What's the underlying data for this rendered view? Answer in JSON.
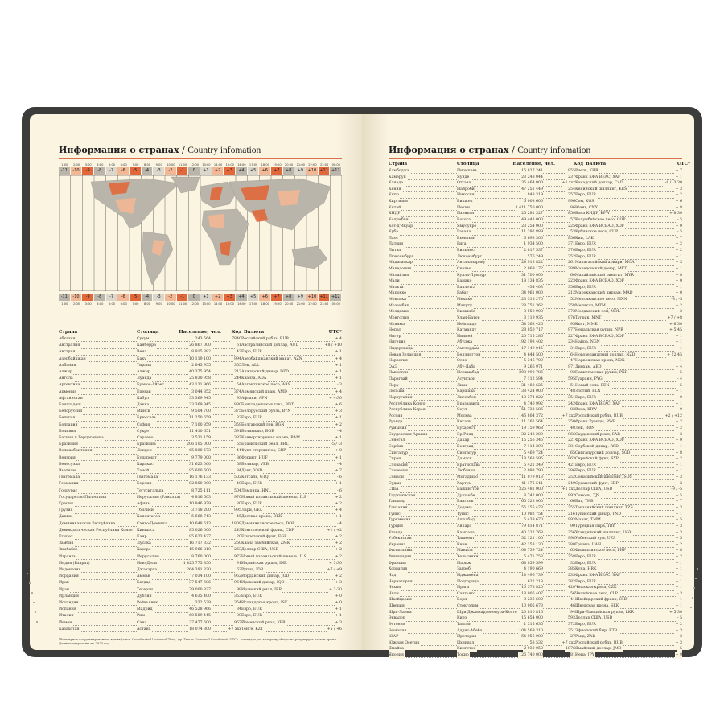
{
  "left_page": {
    "title_ru": "Информация о странах",
    "title_sep": " / ",
    "title_en": "Country infomation",
    "time_bar": {
      "hours": [
        "1:00",
        "2:00",
        "3:00",
        "4:00",
        "5:00",
        "6:00",
        "7:00",
        "8:00",
        "9:00",
        "10:00",
        "11:00",
        "12:00",
        "13:00",
        "14:00",
        "15:00",
        "16:00",
        "17:00",
        "18:00",
        "19:00",
        "20:00",
        "21:00",
        "22:00",
        "23:00",
        "00:00"
      ],
      "offsets": [
        "-11",
        "-10",
        "-9",
        "-8",
        "-7",
        "-6",
        "-5",
        "-4",
        "-3",
        "-2",
        "-1",
        "0",
        "+1",
        "+2",
        "+3",
        "+4",
        "+5",
        "+6",
        "+7",
        "+8",
        "+9",
        "+10",
        "+11",
        "+12"
      ],
      "palette": [
        "#b9b5ab",
        "#dcd7cc",
        "#f2b795",
        "#e2683b"
      ]
    },
    "headers": [
      "Страна",
      "Столица",
      "Население, чел.",
      "Код",
      "Валюта",
      "UTC*"
    ],
    "rows": [
      [
        "Абхазия",
        "Сухум",
        "243 564",
        "7840",
        "Российский рубль, RUB",
        "+ 4"
      ],
      [
        "Австралия",
        "Канберра",
        "26 867 000",
        "61",
        "Австралийский доллар, AUD",
        "+8 / +10"
      ],
      [
        "Австрия",
        "Вена",
        "8 915 382",
        "43",
        "Евро, EUR",
        "+ 1"
      ],
      [
        "Азербайджан",
        "Баку",
        "10 119 100",
        "994",
        "Азербайджанский манат, AZN",
        "+ 4"
      ],
      [
        "Албания",
        "Тирана",
        "2 845 955",
        "355",
        "Лек, ALL",
        "+ 1"
      ],
      [
        "Алжир",
        "Алжир",
        "40 375 954",
        "213",
        "Алжирский динар, DZD",
        "+ 1"
      ],
      [
        "Ангола",
        "Луанда",
        "25 830 958",
        "244",
        "Кванза, AOA",
        "+ 1"
      ],
      [
        "Аргентина",
        "Буэнос-Айрес",
        "43 131 966",
        "54",
        "Аргентинское песо, ARS",
        "- 3"
      ],
      [
        "Армения",
        "Ереван",
        "3 044 852",
        "374",
        "Армянский драм, AMD",
        "+ 4"
      ],
      [
        "Афганистан",
        "Кабул",
        "33 369 945",
        "93",
        "Афгани, AFN",
        "+ 4:30"
      ],
      [
        "Бангладеш",
        "Дакка",
        "33 369 945",
        "880",
        "Бангладешская така, BDT",
        "+ 6"
      ],
      [
        "Белоруссия",
        "Минск",
        "9 504 700",
        "375",
        "Белорусский рубль, BYN",
        "+ 3"
      ],
      [
        "Бельгия",
        "Брюссель",
        "11 250 659",
        "32",
        "Евро, EUR",
        "+ 1"
      ],
      [
        "Болгария",
        "София",
        "7 100 859",
        "359",
        "Болгарский лев, BGN",
        "+ 2"
      ],
      [
        "Боливия",
        "Сукре",
        "11 410 651",
        "591",
        "Боливиано, BOB",
        "- 4"
      ],
      [
        "Босния и Герцеговина",
        "Сараево",
        "3 531 159",
        "387",
        "Конвертируемая марка, BAM",
        "+ 1"
      ],
      [
        "Бразилия",
        "Бразилиа",
        "206 105 000",
        "55",
        "Бразильский реал, BRL",
        "-5 / -3"
      ],
      [
        "Великобритания",
        "Лондон",
        "65 808 573",
        "44",
        "Фунт стерлингов, GBP",
        "+ 0"
      ],
      [
        "Венгрия",
        "Будапешт",
        "9 779 000",
        "36",
        "Форинт, HUF",
        "+ 1"
      ],
      [
        "Венесуэла",
        "Каракас",
        "31 623 000",
        "58",
        "Боливар, VEB",
        "- 4"
      ],
      [
        "Вьетнам",
        "Ханой",
        "95 600 600",
        "84",
        "Донг, VND",
        "+ 7"
      ],
      [
        "Гватемала",
        "Гватемала",
        "16 176 133",
        "502",
        "Кетсаль, GTQ",
        "- 6"
      ],
      [
        "Германия",
        "Берлин",
        "82 800 000",
        "49",
        "Евро, EUR",
        "+ 1"
      ],
      [
        "Гондурас",
        "Тегусигальпа",
        "8 725 111",
        "504",
        "Лемпира, HNL",
        "- 6"
      ],
      [
        "Государство Палестина",
        "Иерусалим (Рамалла)",
        "4 816 503",
        "970",
        "Новый израильский шекель, ILS",
        "+ 2"
      ],
      [
        "Греция",
        "Афины",
        "10 846 979",
        "30",
        "Евро, EUR",
        "+ 2"
      ],
      [
        "Грузия",
        "Тбилиси",
        "3 718 200",
        "995",
        "Лари, GEL",
        "+ 4"
      ],
      [
        "Дания",
        "Копенгаген",
        "5 668 743",
        "45",
        "Датская крона, DKK",
        "+ 1"
      ],
      [
        "Доминиканская Республика",
        "Санто-Доминго",
        "10 648 613",
        "1809",
        "Доминиканское песо, DOP",
        "- 4"
      ],
      [
        "Демократическая Республика Конго",
        "Киншаса",
        "85 026 000",
        "243",
        "Конголезский франк, CDF",
        "+1 / +2"
      ],
      [
        "Египет",
        "Каир",
        "95 623 427",
        "20",
        "Египетский фунт, EGP",
        "+ 2"
      ],
      [
        "Замбия",
        "Лусака",
        "16 717 332",
        "260",
        "Квача замбийская, ZMK",
        "+ 2"
      ],
      [
        "Зимбабве",
        "Хараре",
        "15 966 810",
        "263",
        "Доллар США, USD",
        "+ 2"
      ],
      [
        "Израиль",
        "Иерусалим",
        "8 760 000",
        "972",
        "Новый израильский шекель, ILS",
        "+ 2"
      ],
      [
        "Индия (Бхарат)",
        "Нью-Дели",
        "1 425 775 850",
        "91",
        "Индийская рупия, INR",
        "+ 5:30"
      ],
      [
        "Индонезия",
        "Джакарта",
        "264 391 330",
        "62",
        "Рупия, IDR",
        "+7 / +9"
      ],
      [
        "Иордания",
        "Амман",
        "7 034 100",
        "962",
        "Иорданский динар, JOD",
        "+ 2"
      ],
      [
        "Ирак",
        "Багдад",
        "37 547 686",
        "964",
        "Иракский динар, IQD",
        "+ 3"
      ],
      [
        "Иран",
        "Тегеран",
        "79 000 827",
        "98",
        "Иранский риал, IRR",
        "+ 3:30"
      ],
      [
        "Ирландия",
        "Дублин",
        "4 635 400",
        "353",
        "Евро, EUR",
        "+ 0"
      ],
      [
        "Исландия",
        "Рейкьявик",
        "332 529",
        "354",
        "Исландская крона, ISK",
        "+ 0"
      ],
      [
        "Испания",
        "Мадрид",
        "46 528 966",
        "34",
        "Евро, EUR",
        "+ 1"
      ],
      [
        "Италия",
        "Рим",
        "60 589 445",
        "39",
        "Евро, EUR",
        "+ 1"
      ],
      [
        "Йемен",
        "Сана",
        "27 477 600",
        "967",
        "Йеменский риал, YER",
        "+ 3"
      ],
      [
        "Казахстан",
        "Астана",
        "18 074 300",
        "+7 xxx",
        "Тенге, KZT",
        "+5 / +6"
      ]
    ],
    "footnote": "*Всемирное координированное время (англ. Coordinated Universal Time, фр. Temps Universel Coordonné, UTC) – стандарт, по которому общество регулирует часы и время. Данные актуальны на 2023 год."
  },
  "right_page": {
    "title_ru": "Информация о странах",
    "title_sep": " / ",
    "title_en": "Country infomation",
    "headers": [
      "Страна",
      "Столица",
      "Население, чел.",
      "Код",
      "Валюта",
      "UTC*"
    ],
    "rows": [
      [
        "Камбоджа",
        "Пномпень",
        "15 827 241",
        "855",
        "Риель, KHR",
        "+ 7"
      ],
      [
        "Камерун",
        "Яунде",
        "23 248 044",
        "237",
        "Франк КФА BEAC, XAF",
        "+ 1"
      ],
      [
        "Канада",
        "Оттава",
        "35 464 000",
        "+1 xxx",
        "Канадский доллар, CAD",
        "-8 / -3:30"
      ],
      [
        "Кения",
        "Найроби",
        "47 251 449",
        "254",
        "Кенийский шиллинг, KES",
        "+ 3"
      ],
      [
        "Кипр",
        "Никосия",
        "848 319",
        "357",
        "Евро, EUR",
        "+ 2"
      ],
      [
        "Киргизия",
        "Бишкек",
        "6 008 600",
        "996",
        "Сом, KGS",
        "+ 6"
      ],
      [
        "Китай",
        "Пекин",
        "1 411 750 000",
        "86",
        "Юань, CNY",
        "+ 8"
      ],
      [
        "КНДР",
        "Пхеньян",
        "25 281 327",
        "850",
        "Вона КНДР, KPW",
        "+ 8:30"
      ],
      [
        "Колумбия",
        "Богота",
        "49 443 000",
        "57",
        "Колумбийское песо, COP",
        "- 5"
      ],
      [
        "Кот-д'Ивуар",
        "Ямусукро",
        "23 254 000",
        "225",
        "Франк КФА ВСЕАО, XOF",
        "+ 0"
      ],
      [
        "Куба",
        "Гавана",
        "11 392 889",
        "53",
        "Кубинское песо, CUP",
        "- 5"
      ],
      [
        "Лаос",
        "Вьентьян",
        "6 693 300",
        "856",
        "Кип, LAK",
        "+ 7"
      ],
      [
        "Латвия",
        "Рига",
        "1 934 500",
        "371",
        "Евро, EUR",
        "+ 2"
      ],
      [
        "Литва",
        "Вильнюс",
        "2 817 537",
        "370",
        "Евро, EUR",
        "+ 2"
      ],
      [
        "Люксембург",
        "Люксембург",
        "576 249",
        "352",
        "Евро, EUR",
        "+ 1"
      ],
      [
        "Мадагаскар",
        "Антананариву",
        "24 913 822",
        "261",
        "Малагасийский ариари, MGA",
        "+ 3"
      ],
      [
        "Македония",
        "Скопье",
        "2 069 172",
        "389",
        "Македонский денар, MKD",
        "+ 1"
      ],
      [
        "Малайзия",
        "Куала-Лумпур",
        "31 700 000",
        "60",
        "Малайзийский ринггит, MYR",
        "+ 8"
      ],
      [
        "Мали",
        "Бамако",
        "18 134 835",
        "223",
        "Франк КФА ВСЕАО, XOF",
        "+ 0"
      ],
      [
        "Мальта",
        "Валлетта",
        "434 403",
        "356",
        "Евро, EUR",
        "+ 1"
      ],
      [
        "Марокко",
        "Рабат",
        "34 961 000",
        "212",
        "Марокканский дирхам, MAD",
        "+ 0"
      ],
      [
        "Мексика",
        "Мехико",
        "123 518 270",
        "52",
        "Мексиканское песо, MXN",
        "-8 / -5"
      ],
      [
        "Мозамбик",
        "Мапуту",
        "28 751 362",
        "258",
        "Метикал, MZM",
        "+ 2"
      ],
      [
        "Молдавия",
        "Кишинёв",
        "3 550 900",
        "373",
        "Молдавский лей, MDL",
        "+ 2"
      ],
      [
        "Монголия",
        "Улан-Батор",
        "3 119 935",
        "976",
        "Тугрик, MNT",
        "+7 / +8"
      ],
      [
        "Мьянма",
        "Нейпьидо",
        "54 363 426",
        "95",
        "Кьят, MMK",
        "+ 6:30"
      ],
      [
        "Непал",
        "Катманду",
        "28 850 717",
        "977",
        "Непальская рупия, NPR",
        "+ 5:45"
      ],
      [
        "Нигер",
        "Ниамей",
        "20 715 285",
        "227",
        "Франк КФА ВСЕАО, XOF",
        "+ 1"
      ],
      [
        "Нигерия",
        "Абуджа",
        "192 193 402",
        "234",
        "Найра, NGN",
        "+ 1"
      ],
      [
        "Нидерланды",
        "Амстердам",
        "17 149 045",
        "31",
        "Евро, EUR",
        "+ 1"
      ],
      [
        "Новая Зеландия",
        "Веллингтон",
        "4 644 500",
        "64",
        "Новозеландский доллар, NZD",
        "+ 12:45"
      ],
      [
        "Норвегия",
        "Осло",
        "5 346 700",
        "47",
        "Норвежская крона, NOK",
        "+ 1"
      ],
      [
        "ОАЭ",
        "Абу-Даби",
        "9 266 971",
        "971",
        "Дирхам, AED",
        "+ 4"
      ],
      [
        "Пакистан",
        "Исламабад",
        "208 990 786",
        "92",
        "Пакистанская рупия, PKR",
        "+ 5"
      ],
      [
        "Парагвай",
        "Асунсьон",
        "7 112 594",
        "595",
        "Гуарани, PYG",
        "- 4"
      ],
      [
        "Перу",
        "Лима",
        "31 488 625",
        "51",
        "Новый соль, PEN",
        "- 5"
      ],
      [
        "Польша",
        "Варшава",
        "38 424 000",
        "48",
        "Злотый, PLN",
        "+ 1"
      ],
      [
        "Португалия",
        "Лиссабон",
        "10 374 822",
        "351",
        "Евро, EUR",
        "+ 0"
      ],
      [
        "Республика Конго",
        "Браззавиль",
        "4 740 992",
        "242",
        "Франк КФА BEAC, XAF",
        "+ 1"
      ],
      [
        "Республика Корея",
        "Сеул",
        "51 732 586",
        "82",
        "Вона, KRW",
        "+ 9"
      ],
      [
        "Россия",
        "Москва",
        "146 804 372",
        "+7 xxx",
        "Российский рубль, RUB",
        "+2 / +12"
      ],
      [
        "Руанда",
        "Кигали",
        "11 262 564",
        "250",
        "Франк Руанды, RWF",
        "+ 2"
      ],
      [
        "Румыния",
        "Бухарест",
        "19 759 968",
        "40",
        "Лей, RON",
        "+ 2"
      ],
      [
        "Саудовская Аравия",
        "Эр-Рияд",
        "32 248 200",
        "966",
        "Саудовский риал, SAR",
        "+ 3"
      ],
      [
        "Сенегал",
        "Дакар",
        "15 256 346",
        "221",
        "Франк КФА ВСЕАО, XOF",
        "+ 0"
      ],
      [
        "Сербия",
        "Белград",
        "7 114 393",
        "381",
        "Сербский динар, RSD",
        "+ 1"
      ],
      [
        "Сингапур",
        "Сингапур",
        "5 469 724",
        "65",
        "Сингапурский доллар, SGD",
        "+ 8"
      ],
      [
        "Сирия",
        "Дамаск",
        "18 563 595",
        "963",
        "Сирийский фунт, SYP",
        "+ 2"
      ],
      [
        "Словакия",
        "Братислава",
        "5 421 349",
        "421",
        "Евро, EUR",
        "+ 1"
      ],
      [
        "Словения",
        "Любляна",
        "2 093 790",
        "386",
        "Евро, EUR",
        "+ 1"
      ],
      [
        "Сомали",
        "Могадишо",
        "11 079 013",
        "252",
        "Сомалийский шиллинг, SOS",
        "+ 3"
      ],
      [
        "Судан",
        "Хартум",
        "41 175 541",
        "249",
        "Суданский фунт, SDP",
        "+ 3"
      ],
      [
        "США",
        "Вашингтон",
        "326 481 000",
        "+1 xxx",
        "Доллар США, USD",
        "-9 / -5"
      ],
      [
        "Таджикистан",
        "Душанбе",
        "8 742 000",
        "992",
        "Сомони, TJS",
        "+ 5"
      ],
      [
        "Таиланд",
        "Бангкок",
        "65 323 000",
        "66",
        "Бат, THB",
        "+ 7"
      ],
      [
        "Танзания",
        "Додома",
        "55 155 473",
        "255",
        "Танзанийский шиллинг, TZS",
        "+ 3"
      ],
      [
        "Тунис",
        "Тунис",
        "10 982 754",
        "216",
        "Тунисский динар, TND",
        "+ 1"
      ],
      [
        "Туркмения",
        "Ашхабад",
        "5 438 670",
        "993",
        "Манат, TMM",
        "+ 5"
      ],
      [
        "Турция",
        "Анкара",
        "79 814 871",
        "90",
        "Турецкая лира, TRY",
        "+ 3"
      ],
      [
        "Уганда",
        "Кампала",
        "40 322 768",
        "256",
        "Угандийский шиллинг, UGX",
        "+ 3"
      ],
      [
        "Узбекистан",
        "Ташкент",
        "32 121 100",
        "998",
        "Узбекский сум, UZS",
        "+ 5"
      ],
      [
        "Украина",
        "Киев",
        "42 353 130",
        "380",
        "Гривна, UAH",
        "+ 2"
      ],
      [
        "Филиппины",
        "Манила",
        "104 739 724",
        "63",
        "Филиппинское песо, PHP",
        "+ 8"
      ],
      [
        "Финляндия",
        "Хельсинки",
        "5 471 753",
        "358",
        "Евро, EUR",
        "+ 2"
      ],
      [
        "Франция",
        "Париж",
        "64 859 599",
        "33",
        "Евро, EUR",
        "+ 1"
      ],
      [
        "Хорватия",
        "Загреб",
        "4 190 669",
        "385",
        "Куна, HRK",
        "+ 1"
      ],
      [
        "Чад",
        "Нджамена",
        "14 496 739",
        "235",
        "Франк КФА BEAC, XAF",
        "+ 1"
      ],
      [
        "Черногория",
        "Подгорица",
        "622 218",
        "382",
        "Евро, EUR",
        "+ 1"
      ],
      [
        "Чехия",
        "Прага",
        "10 578 820",
        "420",
        "Чешская крона, CZK",
        "+ 1"
      ],
      [
        "Чили",
        "Сантьяго",
        "18 006 407",
        "56",
        "Чилийское песо, CLP",
        "- 3"
      ],
      [
        "Швейцария",
        "Берн",
        "8 236 600",
        "41",
        "Швейцарский франк, CHF",
        "+ 1"
      ],
      [
        "Швеция",
        "Стокгольм",
        "10 005 673",
        "46",
        "Шведская крона, SEK",
        "+ 1"
      ],
      [
        "Шри-Ланка",
        "Шри-Джаяварденепура-Котте",
        "20 810 816",
        "94",
        "Шри-Ланкийская рупия, LKR",
        "+ 5:30"
      ],
      [
        "Эквадор",
        "Кито",
        "15 654 000",
        "593",
        "Доллар США, USD",
        "- 5"
      ],
      [
        "Эстония",
        "Таллин",
        "1 315 635",
        "372",
        "Евро, EUR",
        "+ 2"
      ],
      [
        "Эфиопия",
        "Аддис-Абеба",
        "104 569 310",
        "251",
        "Эфиопский быр, ETB",
        "+ 3"
      ],
      [
        "ЮАР",
        "Претория",
        "54 956 900",
        "27",
        "Рэнд, ZAR",
        "+ 2"
      ],
      [
        "Южная Осетия",
        "Цхинвал",
        "53 532",
        "+7 xxx",
        "Российский рубль, RUB",
        "+ 3"
      ],
      [
        "Ямайка",
        "Кингстон",
        "2 930 050",
        "1876",
        "Ямайский доллар, JMD",
        "- 5"
      ],
      [
        "Япония",
        "Токио",
        "126 740 000",
        "81",
        "Иена, JPY",
        "+ 9"
      ]
    ]
  },
  "colors": {
    "cover": "#3c3c3b",
    "paper": "#fbf4e1",
    "accent": "#e2683b",
    "rule": "#d9704e",
    "land": "#b9b5ab"
  }
}
